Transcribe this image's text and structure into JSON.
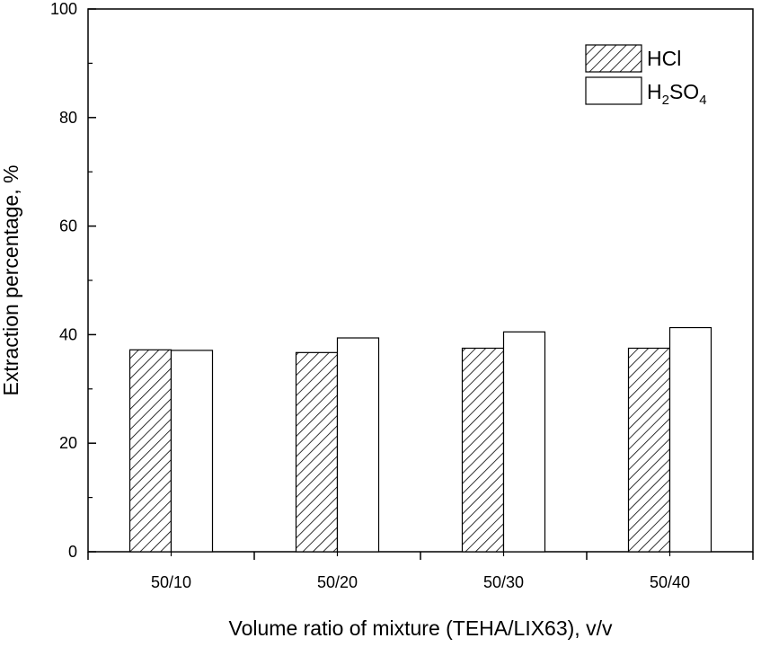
{
  "chart_data": {
    "type": "bar",
    "categories": [
      "50/10",
      "50/20",
      "50/30",
      "50/40"
    ],
    "series": [
      {
        "name": "HCl",
        "legend_main": "HCl",
        "values": [
          37.2,
          36.7,
          37.5,
          37.5
        ],
        "fill": "hatched"
      },
      {
        "name": "H2SO4",
        "legend_main": "H",
        "legend_sub1": "2",
        "legend_mid": "SO",
        "legend_sub2": "4",
        "values": [
          37.1,
          39.4,
          40.5,
          41.3
        ],
        "fill": "white"
      }
    ],
    "xlabel": "Volume ratio of  mixture (TEHA/LIX63), v/v",
    "ylabel": "Extraction percentage, %",
    "ylim": [
      0,
      100
    ],
    "yticks": [
      0,
      20,
      40,
      60,
      80,
      100
    ],
    "yticks_labels": [
      "0",
      "20",
      "40",
      "60",
      "80",
      "100"
    ],
    "grid": false,
    "legend_position": "top-right"
  }
}
